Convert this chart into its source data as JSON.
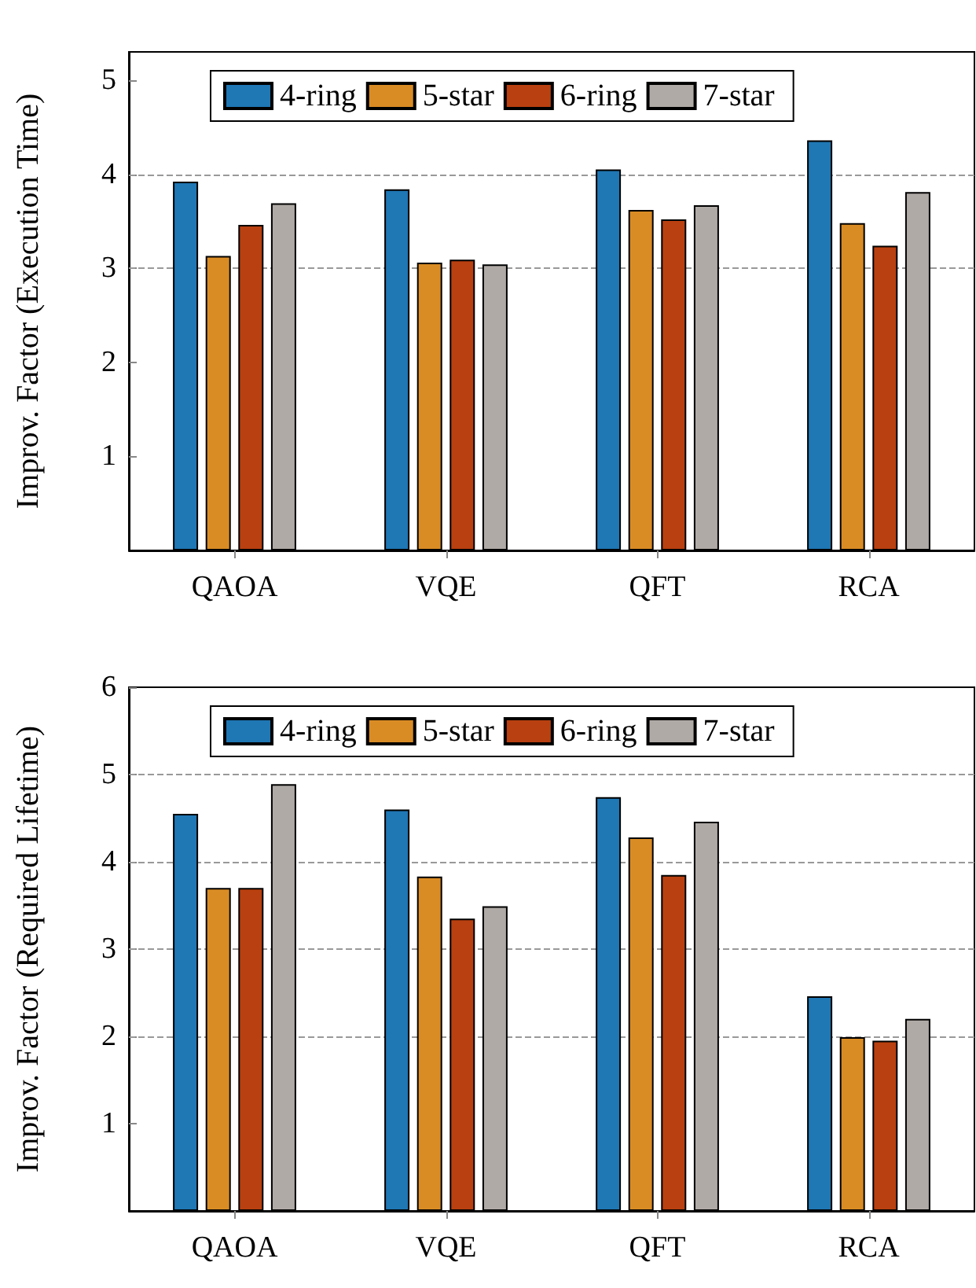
{
  "chart_data": [
    {
      "type": "bar",
      "ylabel": "Improv. Factor (Execution Time)",
      "categories": [
        "QAOA",
        "VQE",
        "QFT",
        "RCA"
      ],
      "series": [
        {
          "name": "4-ring",
          "color": "#1f77b4",
          "values": [
            3.92,
            3.84,
            4.05,
            4.36
          ]
        },
        {
          "name": "5-star",
          "color": "#d98c24",
          "values": [
            3.13,
            3.06,
            3.62,
            3.48
          ]
        },
        {
          "name": "6-ring",
          "color": "#b94010",
          "values": [
            3.46,
            3.09,
            3.52,
            3.24
          ]
        },
        {
          "name": "7-star",
          "color": "#b0aaa6",
          "values": [
            3.69,
            3.04,
            3.67,
            3.81
          ]
        }
      ],
      "ylim": [
        0,
        5.3
      ],
      "yticks": [
        1,
        2,
        3,
        4,
        5
      ],
      "grid": false,
      "legend": "top",
      "ref_lines": [
        {
          "axis": "y",
          "value": 3,
          "line_style": "dashed",
          "color": "#999999"
        },
        {
          "axis": "y",
          "value": 4,
          "line_style": "dashed",
          "color": "#999999"
        }
      ]
    },
    {
      "type": "bar",
      "ylabel": "Improv. Factor (Required Lifetime)",
      "categories": [
        "QAOA",
        "VQE",
        "QFT",
        "RCA"
      ],
      "series": [
        {
          "name": "4-ring",
          "color": "#1f77b4",
          "values": [
            4.55,
            4.6,
            4.74,
            2.46
          ]
        },
        {
          "name": "5-star",
          "color": "#d98c24",
          "values": [
            3.7,
            3.83,
            4.28,
            1.99
          ]
        },
        {
          "name": "6-ring",
          "color": "#b94010",
          "values": [
            3.7,
            3.35,
            3.85,
            1.95
          ]
        },
        {
          "name": "7-star",
          "color": "#b0aaa6",
          "values": [
            4.89,
            3.49,
            4.46,
            2.2
          ]
        }
      ],
      "ylim": [
        0,
        6
      ],
      "yticks": [
        1,
        2,
        3,
        4,
        5,
        6
      ],
      "grid": false,
      "legend": "top",
      "ref_lines": [
        {
          "axis": "y",
          "value": 2,
          "line_style": "dashed",
          "color": "#999999"
        },
        {
          "axis": "y",
          "value": 3,
          "line_style": "dashed",
          "color": "#999999"
        },
        {
          "axis": "y",
          "value": 4,
          "line_style": "dashed",
          "color": "#999999"
        },
        {
          "axis": "y",
          "value": 5,
          "line_style": "dashed",
          "color": "#999999"
        }
      ]
    }
  ]
}
